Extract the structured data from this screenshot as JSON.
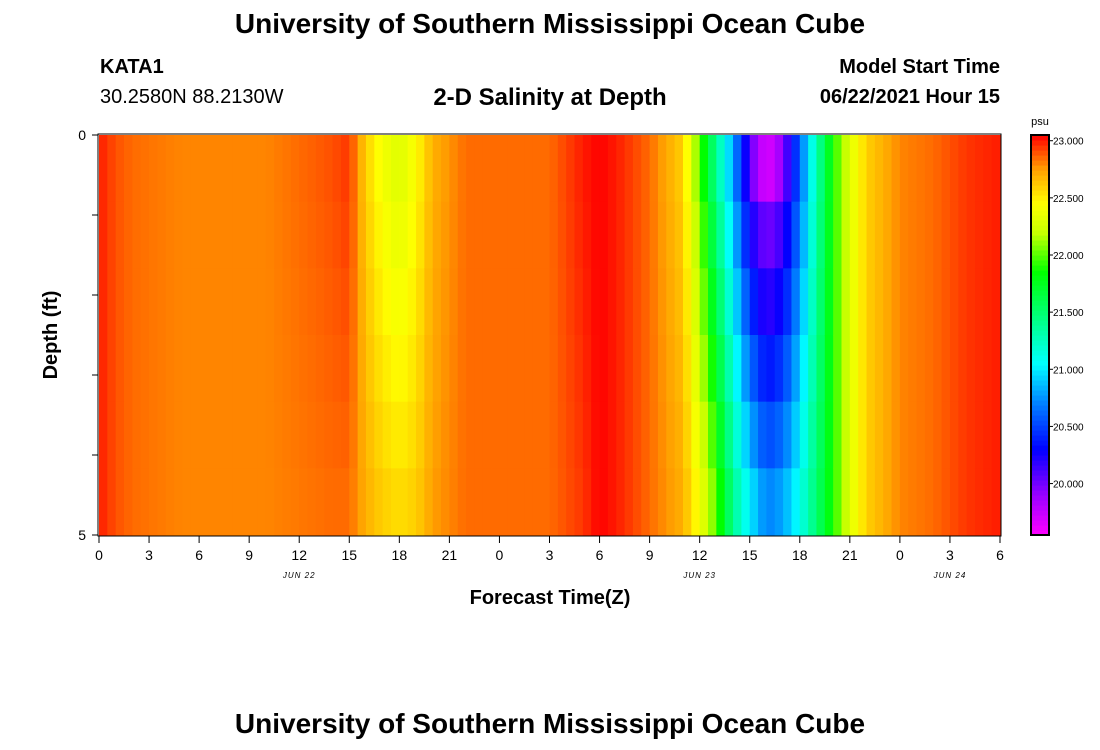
{
  "header": {
    "title": "University of Southern Mississippi Ocean Cube",
    "station": "KATA1",
    "coords": "30.2580N  88.2130W",
    "subtitle": "2-D Salinity at Depth",
    "model_label": "Model Start Time",
    "model_time": "06/22/2021 Hour 15"
  },
  "footer": {
    "title": "University of Southern Mississippi Ocean Cube"
  },
  "chart_data": {
    "type": "heatmap",
    "title": "2-D Salinity at Depth",
    "xlabel": "Forecast Time(Z)",
    "ylabel": "Depth (ft)",
    "x_hours": [
      0,
      3,
      6,
      9,
      12,
      15,
      18,
      21,
      24,
      27,
      30,
      33,
      36,
      39,
      42,
      45,
      48,
      51,
      54
    ],
    "x_tick_labels": [
      "0",
      "3",
      "6",
      "9",
      "12",
      "15",
      "18",
      "21",
      "0",
      "3",
      "6",
      "9",
      "12",
      "15",
      "18",
      "21",
      "0",
      "3",
      "6"
    ],
    "date_labels": [
      {
        "hour": 12,
        "label": "JUN 22"
      },
      {
        "hour": 36,
        "label": "JUN 23"
      },
      {
        "hour": 51,
        "label": "JUN 24"
      }
    ],
    "y_range": [
      0,
      5
    ],
    "y_tick_labels": [
      "0",
      "5"
    ],
    "depth_levels": [
      0,
      1,
      2,
      3,
      4,
      5
    ],
    "colorbar": {
      "unit": "psu",
      "range": [
        19.55,
        23.05
      ],
      "tick_values": [
        20.0,
        20.5,
        21.0,
        21.5,
        22.0,
        22.5,
        23.0
      ],
      "tick_labels": [
        "20.000",
        "20.500",
        "21.000",
        "21.500",
        "22.000",
        "22.500",
        "23.000"
      ],
      "stops": [
        {
          "v": 19.55,
          "color": "#ff00ff"
        },
        {
          "v": 19.9,
          "color": "#9a00ff"
        },
        {
          "v": 20.3,
          "color": "#0000ff"
        },
        {
          "v": 20.7,
          "color": "#0080ff"
        },
        {
          "v": 21.05,
          "color": "#00ffff"
        },
        {
          "v": 21.45,
          "color": "#00ff80"
        },
        {
          "v": 21.85,
          "color": "#00ff00"
        },
        {
          "v": 22.2,
          "color": "#c8ff00"
        },
        {
          "v": 22.45,
          "color": "#ffff00"
        },
        {
          "v": 22.75,
          "color": "#ffa000"
        },
        {
          "v": 23.05,
          "color": "#ff0000"
        }
      ]
    },
    "salinity_profile": [
      {
        "hour": 0,
        "surface": 23.0,
        "bottom": 23.0
      },
      {
        "hour": 1,
        "surface": 22.9,
        "bottom": 22.9
      },
      {
        "hour": 2,
        "surface": 22.85,
        "bottom": 22.85
      },
      {
        "hour": 5,
        "surface": 22.8,
        "bottom": 22.8
      },
      {
        "hour": 10,
        "surface": 22.8,
        "bottom": 22.8
      },
      {
        "hour": 14,
        "surface": 22.9,
        "bottom": 22.85
      },
      {
        "hour": 15,
        "surface": 22.95,
        "bottom": 22.85
      },
      {
        "hour": 16,
        "surface": 22.6,
        "bottom": 22.7
      },
      {
        "hour": 17,
        "surface": 22.4,
        "bottom": 22.6
      },
      {
        "hour": 18,
        "surface": 22.3,
        "bottom": 22.55
      },
      {
        "hour": 19,
        "surface": 22.45,
        "bottom": 22.6
      },
      {
        "hour": 20,
        "surface": 22.7,
        "bottom": 22.75
      },
      {
        "hour": 22,
        "surface": 22.85,
        "bottom": 22.85
      },
      {
        "hour": 27,
        "surface": 22.85,
        "bottom": 22.85
      },
      {
        "hour": 29,
        "surface": 23.0,
        "bottom": 22.95
      },
      {
        "hour": 30,
        "surface": 23.05,
        "bottom": 23.05
      },
      {
        "hour": 31,
        "surface": 23.0,
        "bottom": 23.0
      },
      {
        "hour": 33,
        "surface": 22.85,
        "bottom": 22.85
      },
      {
        "hour": 35,
        "surface": 22.6,
        "bottom": 22.7
      },
      {
        "hour": 36,
        "surface": 22.0,
        "bottom": 22.4
      },
      {
        "hour": 37,
        "surface": 21.4,
        "bottom": 22.0
      },
      {
        "hour": 38,
        "surface": 20.8,
        "bottom": 21.4
      },
      {
        "hour": 39,
        "surface": 20.1,
        "bottom": 21.0
      },
      {
        "hour": 40,
        "surface": 19.8,
        "bottom": 20.7
      },
      {
        "hour": 41,
        "surface": 20.0,
        "bottom": 20.8
      },
      {
        "hour": 42,
        "surface": 20.6,
        "bottom": 21.1
      },
      {
        "hour": 43,
        "surface": 21.3,
        "bottom": 21.5
      },
      {
        "hour": 44,
        "surface": 21.9,
        "bottom": 21.9
      },
      {
        "hour": 45,
        "surface": 22.3,
        "bottom": 22.3
      },
      {
        "hour": 46,
        "surface": 22.6,
        "bottom": 22.6
      },
      {
        "hour": 48,
        "surface": 22.8,
        "bottom": 22.8
      },
      {
        "hour": 50,
        "surface": 22.85,
        "bottom": 22.85
      },
      {
        "hour": 52,
        "surface": 22.95,
        "bottom": 22.95
      },
      {
        "hour": 54,
        "surface": 23.0,
        "bottom": 23.0
      }
    ]
  }
}
